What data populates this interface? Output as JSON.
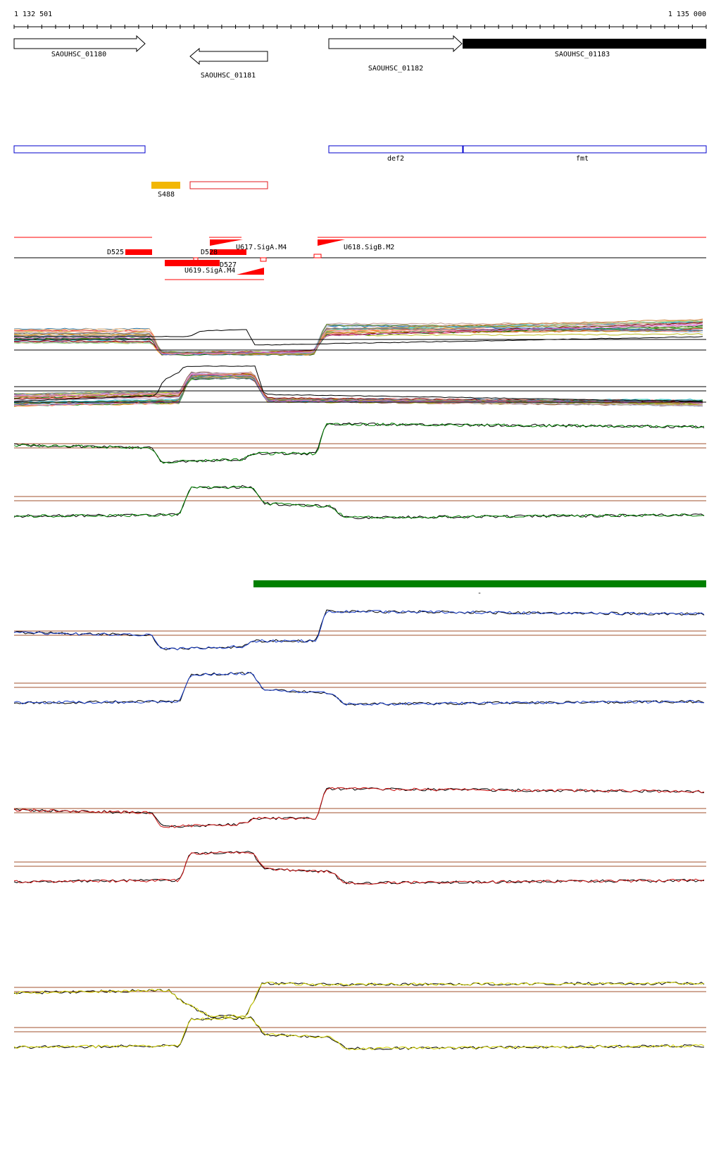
{
  "ruler": {
    "start_label": "1 132 501",
    "end_label": "1 135 000"
  },
  "genes": [
    {
      "id": "g1180",
      "label": "SAOUHSC_01180",
      "strand": "+",
      "style": "outline"
    },
    {
      "id": "g1181",
      "label": "SAOUHSC_01181",
      "strand": "-",
      "style": "outline"
    },
    {
      "id": "g1182",
      "label": "SAOUHSC_01182",
      "strand": "+",
      "style": "outline"
    },
    {
      "id": "g1183",
      "label": "SAOUHSC_01183",
      "strand": "+",
      "style": "filled"
    }
  ],
  "annotations": [
    {
      "id": "a1",
      "label": ""
    },
    {
      "id": "a2",
      "label": "def2"
    },
    {
      "id": "a3",
      "label": "fmt"
    }
  ],
  "small_rnas": [
    {
      "id": "s488",
      "label": "S488",
      "color": "#f2b705",
      "style": "filled"
    },
    {
      "id": "s-other",
      "label": "",
      "color": "#e31a1c",
      "style": "outline"
    }
  ],
  "features": [
    {
      "id": "d525",
      "label": "D525"
    },
    {
      "id": "d528",
      "label": "D528"
    },
    {
      "id": "d527",
      "label": "D527"
    },
    {
      "id": "u617",
      "label": "U617.SigA.M4"
    },
    {
      "id": "u618",
      "label": "U618.SigB.M2"
    },
    {
      "id": "u619",
      "label": "U619.SigA.M4"
    }
  ],
  "colors": {
    "feature_red": "#ff0000",
    "annotation_blue": "#0000cc",
    "track_green": "#008000",
    "track_blue": "#1a3fcc",
    "track_red": "#cc1111",
    "track_yellow": "#d4d400",
    "threshold_line": "#a0522d"
  },
  "green_bar_label": "-"
}
